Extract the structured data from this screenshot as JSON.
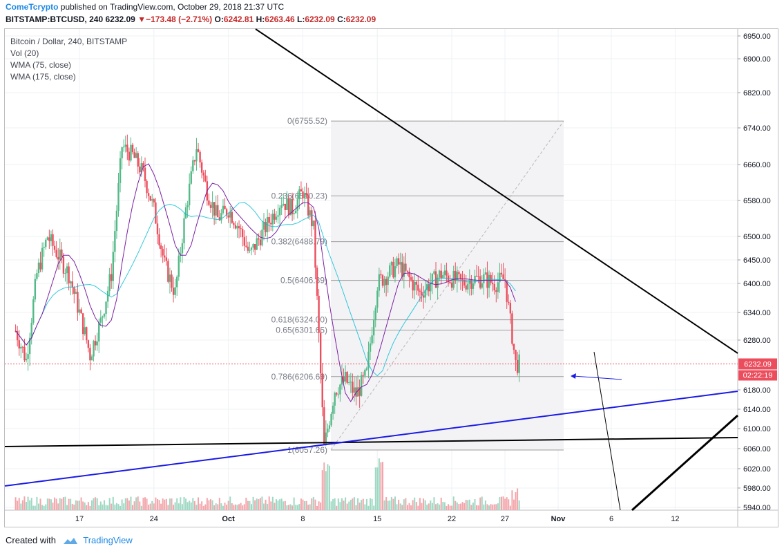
{
  "header": {
    "author": "ComeTcrypto",
    "published": "published on TradingView.com, October 29, 2018 21:37 UTC",
    "symbol": "BITSTAMP:BTCUSD, 240",
    "price": "6232.09",
    "change": "−173.48 (−2.71%)",
    "o_label": "O:",
    "o": "6242.81",
    "h_label": "H:",
    "h": "6263.46",
    "l_label": "L:",
    "l": "6232.09",
    "c_label": "C:",
    "c": "6232.09"
  },
  "legend": {
    "title": "Bitcoin / Dollar, 240, BITSTAMP",
    "vol": "Vol (20)",
    "wma1": "WMA (75, close)",
    "wma2": "WMA (175, close)"
  },
  "footer": {
    "created": "Created with",
    "brand": "TradingView"
  },
  "chart_data": {
    "type": "candlestick",
    "yticks": [
      5940,
      5980,
      6020,
      6060,
      6100,
      6140,
      6180,
      6280,
      6340,
      6400,
      6450,
      6500,
      6580,
      6660,
      6740,
      6820,
      6900,
      6950
    ],
    "xticks": [
      {
        "label": "17",
        "day": 17
      },
      {
        "label": "24",
        "day": 24
      },
      {
        "label": "Oct",
        "day": 31
      },
      {
        "label": "8",
        "day": 38
      },
      {
        "label": "15",
        "day": 45
      },
      {
        "label": "22",
        "day": 52
      },
      {
        "label": "27",
        "day": 57
      },
      {
        "label": "Nov",
        "day": 62
      },
      {
        "label": "6",
        "day": 67
      },
      {
        "label": "12",
        "day": 73
      }
    ],
    "price_label": "6232.09",
    "timer_label": "02:22:19",
    "fib_levels": [
      {
        "label": "0(6755.52)",
        "value": 6755.52
      },
      {
        "label": "0.236(6590.23)",
        "value": 6590.23
      },
      {
        "label": "0.382(6488.79)",
        "value": 6488.79
      },
      {
        "label": "0.5(6406.39)",
        "value": 6406.39
      },
      {
        "label": "0.618(6324.00)",
        "value": 6324.0
      },
      {
        "label": "0.65(6301.65)",
        "value": 6301.65
      },
      {
        "label": "0.786(6206.69)",
        "value": 6206.69
      },
      {
        "label": "1(6057.26)",
        "value": 6057.26
      }
    ],
    "candles_anchor": [
      [
        11,
        6300
      ],
      [
        12,
        6240
      ],
      [
        13,
        6420
      ],
      [
        14,
        6500
      ],
      [
        15,
        6460
      ],
      [
        16,
        6420
      ],
      [
        17,
        6340
      ],
      [
        18,
        6250
      ],
      [
        19,
        6320
      ],
      [
        20,
        6420
      ],
      [
        21,
        6700
      ],
      [
        22,
        6680
      ],
      [
        23,
        6640
      ],
      [
        24,
        6560
      ],
      [
        25,
        6440
      ],
      [
        26,
        6380
      ],
      [
        27,
        6560
      ],
      [
        28,
        6700
      ],
      [
        29,
        6600
      ],
      [
        30,
        6540
      ],
      [
        31,
        6560
      ],
      [
        32,
        6520
      ],
      [
        33,
        6460
      ],
      [
        34,
        6500
      ],
      [
        35,
        6540
      ],
      [
        36,
        6580
      ],
      [
        37,
        6560
      ],
      [
        38,
        6600
      ],
      [
        39,
        6520
      ],
      [
        40,
        6060
      ],
      [
        41,
        6180
      ],
      [
        42,
        6200
      ],
      [
        43,
        6170
      ],
      [
        44,
        6210
      ],
      [
        45,
        6400
      ],
      [
        46,
        6420
      ],
      [
        47,
        6440
      ],
      [
        48,
        6410
      ],
      [
        49,
        6380
      ],
      [
        50,
        6400
      ],
      [
        51,
        6420
      ],
      [
        52,
        6410
      ],
      [
        53,
        6400
      ],
      [
        54,
        6410
      ],
      [
        55,
        6410
      ],
      [
        56,
        6400
      ],
      [
        57,
        6410
      ],
      [
        58,
        6232
      ]
    ]
  }
}
